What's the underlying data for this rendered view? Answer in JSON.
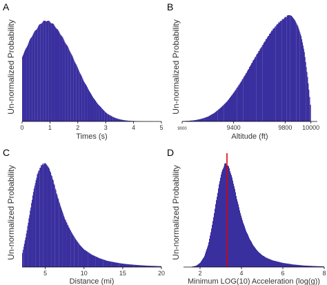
{
  "chart_data": [
    {
      "type": "histogram",
      "panel_label": "A",
      "ylabel": "Un-normalized Probability",
      "xlabel": "Times (s)",
      "xlim": [
        0,
        5
      ],
      "x_ticks": [
        "0",
        "1",
        "2",
        "3",
        "4",
        "5"
      ],
      "bar_color": "#3a2f9e",
      "x": [
        0.0,
        0.1,
        0.2,
        0.3,
        0.4,
        0.5,
        0.6,
        0.7,
        0.8,
        0.9,
        1.0,
        1.1,
        1.2,
        1.3,
        1.4,
        1.5,
        1.6,
        1.7,
        1.8,
        1.9,
        2.0,
        2.1,
        2.2,
        2.3,
        2.4,
        2.5,
        2.6,
        2.7,
        2.8,
        2.9,
        3.0,
        3.1,
        3.2,
        3.3,
        3.4,
        3.5,
        3.6,
        3.7,
        3.8,
        3.9,
        4.0,
        4.2,
        4.4,
        4.6,
        4.8
      ],
      "y": [
        0.64,
        0.7,
        0.76,
        0.82,
        0.87,
        0.91,
        0.95,
        0.98,
        1.0,
        1.0,
        0.99,
        0.97,
        0.94,
        0.9,
        0.86,
        0.81,
        0.76,
        0.71,
        0.65,
        0.59,
        0.53,
        0.47,
        0.41,
        0.36,
        0.31,
        0.26,
        0.22,
        0.18,
        0.15,
        0.12,
        0.09,
        0.07,
        0.055,
        0.04,
        0.03,
        0.022,
        0.016,
        0.011,
        0.008,
        0.006,
        0.004,
        0.002,
        0.001,
        0.0005,
        0.0002
      ]
    },
    {
      "type": "histogram",
      "panel_label": "B",
      "ylabel": "Un-normalized Probability",
      "xlabel": "Altitude (ft)",
      "xlim": [
        9000,
        10050
      ],
      "x_ticks": [
        "9000",
        "9400",
        "9800",
        "10000"
      ],
      "bar_color": "#3a2f9e",
      "x": [
        9000,
        9050,
        9100,
        9150,
        9200,
        9250,
        9300,
        9350,
        9400,
        9450,
        9500,
        9550,
        9600,
        9650,
        9700,
        9750,
        9800,
        9825,
        9850,
        9875,
        9900,
        9925,
        9950,
        9975,
        10000
      ],
      "y": [
        0.003,
        0.006,
        0.012,
        0.025,
        0.045,
        0.08,
        0.13,
        0.19,
        0.27,
        0.36,
        0.46,
        0.57,
        0.67,
        0.77,
        0.86,
        0.93,
        0.98,
        1.0,
        0.99,
        0.96,
        0.9,
        0.8,
        0.65,
        0.42,
        0.12
      ]
    },
    {
      "type": "histogram",
      "panel_label": "C",
      "ylabel": "Un-normalized Probability",
      "xlabel": "Distance (mi)",
      "xlim": [
        2,
        20
      ],
      "x_ticks": [
        "5",
        "10",
        "15",
        "20"
      ],
      "bar_color": "#3a2f9e",
      "x": [
        2.0,
        2.5,
        3.0,
        3.5,
        4.0,
        4.5,
        5.0,
        5.5,
        6.0,
        6.5,
        7.0,
        7.5,
        8.0,
        8.5,
        9.0,
        9.5,
        10.0,
        11.0,
        12.0,
        13.0,
        14.0,
        15.0,
        16.0,
        17.0,
        18.0,
        19.0,
        20.0
      ],
      "y": [
        0.12,
        0.3,
        0.52,
        0.74,
        0.9,
        0.98,
        1.0,
        0.95,
        0.84,
        0.7,
        0.58,
        0.47,
        0.39,
        0.32,
        0.26,
        0.21,
        0.17,
        0.12,
        0.085,
        0.06,
        0.045,
        0.033,
        0.025,
        0.019,
        0.014,
        0.011,
        0.008
      ]
    },
    {
      "type": "histogram",
      "panel_label": "D",
      "ylabel": "Un-normalized Probability",
      "xlabel": "Minimum LOG(10) Acceleration (log(g))",
      "xlim": [
        1.2,
        8
      ],
      "x_ticks": [
        "2",
        "4",
        "6",
        "8"
      ],
      "bar_color": "#3a2f9e",
      "marker": {
        "x": 3.3,
        "color": "#e00000"
      },
      "x": [
        1.6,
        1.8,
        2.0,
        2.2,
        2.4,
        2.6,
        2.8,
        3.0,
        3.2,
        3.4,
        3.6,
        3.8,
        4.0,
        4.2,
        4.4,
        4.6,
        4.8,
        5.0,
        5.2,
        5.5,
        6.0,
        6.5,
        7.0,
        7.5,
        8.0
      ],
      "y": [
        0.004,
        0.012,
        0.04,
        0.1,
        0.22,
        0.42,
        0.66,
        0.88,
        1.0,
        0.96,
        0.82,
        0.64,
        0.48,
        0.36,
        0.27,
        0.2,
        0.15,
        0.115,
        0.09,
        0.065,
        0.04,
        0.025,
        0.015,
        0.01,
        0.006
      ]
    }
  ]
}
